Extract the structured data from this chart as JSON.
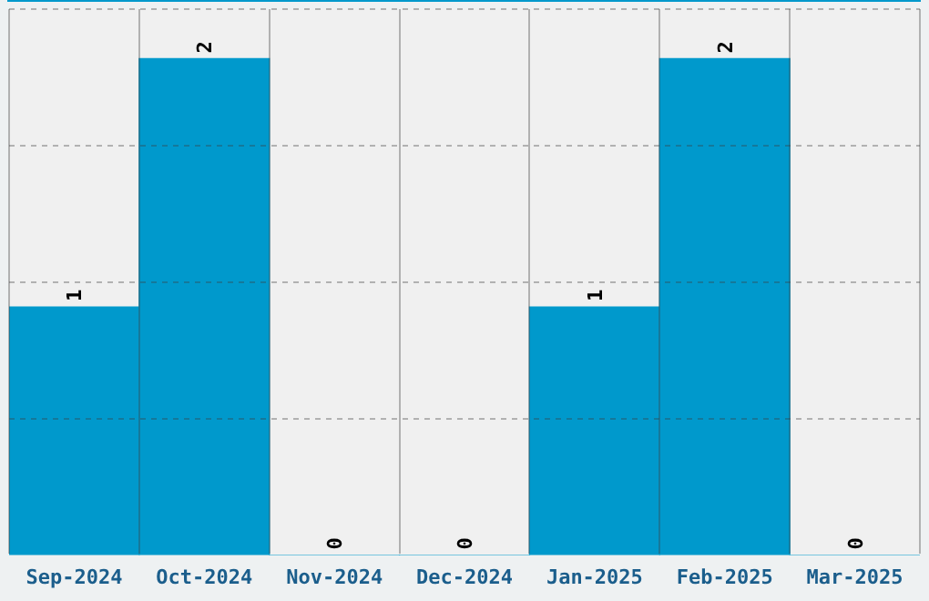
{
  "chart_data": {
    "type": "bar",
    "categories": [
      "Sep-2024",
      "Oct-2024",
      "Nov-2024",
      "Dec-2024",
      "Jan-2025",
      "Feb-2025",
      "Mar-2025"
    ],
    "values": [
      1,
      2,
      0,
      0,
      1,
      2,
      0
    ],
    "color": "#0099cc",
    "ylim": [
      0,
      2.2
    ],
    "yticks": [
      {
        "value": 0.55,
        "label": null
      },
      {
        "value": 1.1,
        "label": null
      },
      {
        "value": 1.65,
        "label": null
      },
      {
        "value": 2.2,
        "label": null
      }
    ],
    "grid": true,
    "data_labels": true,
    "tick_labels": "x",
    "legend": false
  }
}
